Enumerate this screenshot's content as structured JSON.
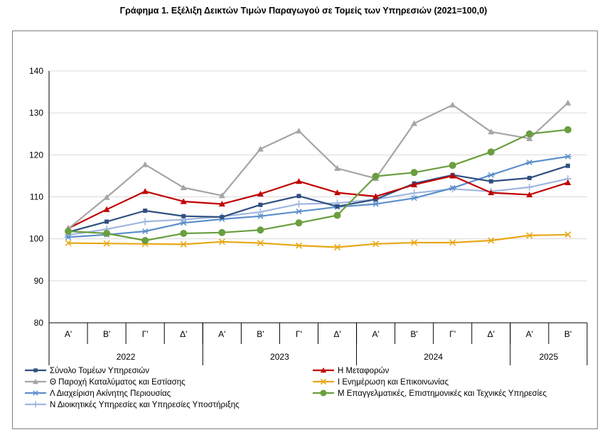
{
  "title": "Γράφημα 1. Εξέλιξη Δεικτών Τιμών Παραγωγού σε Τομείς των Υπηρεσιών (2021=100,0)",
  "chart_data": {
    "type": "line",
    "title": "Γράφημα 1. Εξέλιξη Δεικτών Τιμών Παραγωγού σε Τομείς των Υπηρεσιών (2021=100,0)",
    "xlabel": "",
    "ylabel": "",
    "ylim": [
      80,
      140
    ],
    "yticks": [
      80,
      90,
      100,
      110,
      120,
      130,
      140
    ],
    "grid": "horizontal",
    "legend_position": "bottom",
    "categories": [
      "Α'",
      "Β'",
      "Γ'",
      "Δ'",
      "Α'",
      "Β'",
      "Γ'",
      "Δ'",
      "Α'",
      "Β'",
      "Γ'",
      "Δ'",
      "Α'",
      "Β'"
    ],
    "years": [
      {
        "label": "2022",
        "span": 4
      },
      {
        "label": "2023",
        "span": 4
      },
      {
        "label": "2024",
        "span": 4
      },
      {
        "label": "2025",
        "span": 2
      }
    ],
    "series": [
      {
        "name": "Σύνολο Τομέων Υπηρεσιών",
        "color": "#2F4F7F",
        "marker": "square",
        "values": [
          101.6,
          104.1,
          106.7,
          105.4,
          105.2,
          108.1,
          110.2,
          107.7,
          109.4,
          113.2,
          115.2,
          113.7,
          114.5,
          117.4
        ]
      },
      {
        "name": "Η Μεταφορών",
        "color": "#C00000",
        "marker": "triangle",
        "values": [
          102.5,
          107.0,
          111.3,
          108.9,
          108.3,
          110.7,
          113.7,
          111.0,
          110.1,
          112.9,
          115.0,
          111.0,
          110.5,
          113.4
        ]
      },
      {
        "name": "Θ Παροχή Καταλύματος και Εστίασης",
        "color": "#A5A5A5",
        "marker": "triangle",
        "values": [
          102.4,
          109.9,
          117.7,
          112.2,
          110.3,
          121.4,
          125.7,
          116.8,
          114.4,
          127.5,
          131.9,
          125.5,
          123.9,
          132.4
        ]
      },
      {
        "name": "Ι Ενημέρωση και Επικοινωνίας",
        "color": "#E6A817",
        "marker": "x",
        "values": [
          99.0,
          98.9,
          98.8,
          98.7,
          99.3,
          99.0,
          98.4,
          98.0,
          98.8,
          99.1,
          99.1,
          99.6,
          100.8,
          101.0
        ]
      },
      {
        "name": "Λ Διαχείριση Ακίνητης Περιουσίας",
        "color": "#5B8FCB",
        "marker": "star",
        "values": [
          100.4,
          101.0,
          101.8,
          103.8,
          104.7,
          105.4,
          106.5,
          107.6,
          108.3,
          109.7,
          112.1,
          115.2,
          118.2,
          119.6
        ]
      },
      {
        "name": "Μ Επαγγελματικές, Επιστημονικές και Τεχνικές Υπηρεσίες",
        "color": "#6A9E3F",
        "marker": "circle",
        "values": [
          101.8,
          101.3,
          99.6,
          101.3,
          101.5,
          102.1,
          103.8,
          105.6,
          114.9,
          115.8,
          117.5,
          120.7,
          125.0,
          126.0
        ]
      },
      {
        "name": "Ν Διοικητικές Υπηρεσίες και Υπηρεσίες Υποστήριξης",
        "color": "#9FB6E0",
        "marker": "plus",
        "values": [
          100.9,
          102.3,
          104.1,
          104.6,
          105.3,
          106.4,
          108.3,
          108.5,
          109.4,
          110.9,
          111.9,
          111.3,
          112.3,
          114.3
        ]
      }
    ]
  }
}
